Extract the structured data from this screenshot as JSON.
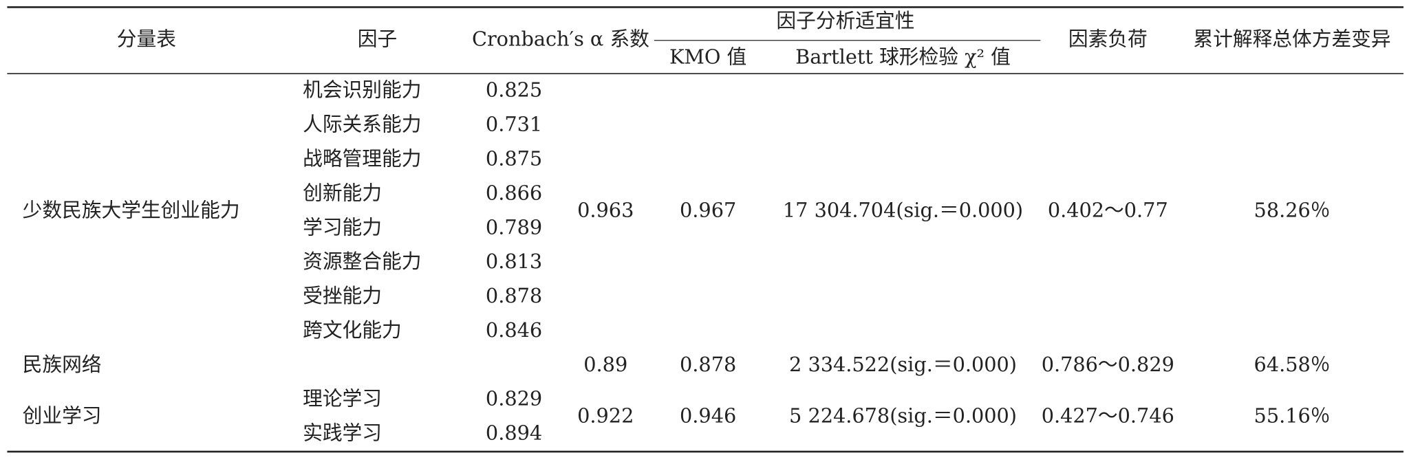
{
  "header": {
    "scale": "分量表",
    "factor": "因子",
    "alpha": "Cronbach′s α 系数",
    "suitability": "因子分析适宜性",
    "kmo": "KMO 值",
    "bartlett": "Bartlett 球形检验 χ² 值",
    "loading": "因素负荷",
    "variance": "累计解释总体方差变异"
  },
  "groups": [
    {
      "name": "少数民族大学生创业能力",
      "factors": [
        {
          "name": "机会识别能力",
          "alpha": "0.825"
        },
        {
          "name": "人际关系能力",
          "alpha": "0.731"
        },
        {
          "name": "战略管理能力",
          "alpha": "0.875"
        },
        {
          "name": "创新能力",
          "alpha": "0.866"
        },
        {
          "name": "学习能力",
          "alpha": "0.789"
        },
        {
          "name": "资源整合能力",
          "alpha": "0.813"
        },
        {
          "name": "受挫能力",
          "alpha": "0.878"
        },
        {
          "name": "跨文化能力",
          "alpha": "0.846"
        }
      ],
      "alpha": "0.963",
      "kmo": "0.967",
      "bartlett": "17 304.704(sig.＝0.000)",
      "loading": "0.402～0.77",
      "variance": "58.26％"
    },
    {
      "name": "民族网络",
      "factors": [],
      "alpha": "0.89",
      "kmo": "0.878",
      "bartlett": "2 334.522(sig.＝0.000)",
      "loading": "0.786～0.829",
      "variance": "64.58％"
    },
    {
      "name": "创业学习",
      "factors": [
        {
          "name": "理论学习",
          "alpha": "0.829"
        },
        {
          "name": "实践学习",
          "alpha": "0.894"
        }
      ],
      "alpha": "0.922",
      "kmo": "0.946",
      "bartlett": "5 224.678(sig.＝0.000)",
      "loading": "0.427～0.746",
      "variance": "55.16％"
    }
  ]
}
